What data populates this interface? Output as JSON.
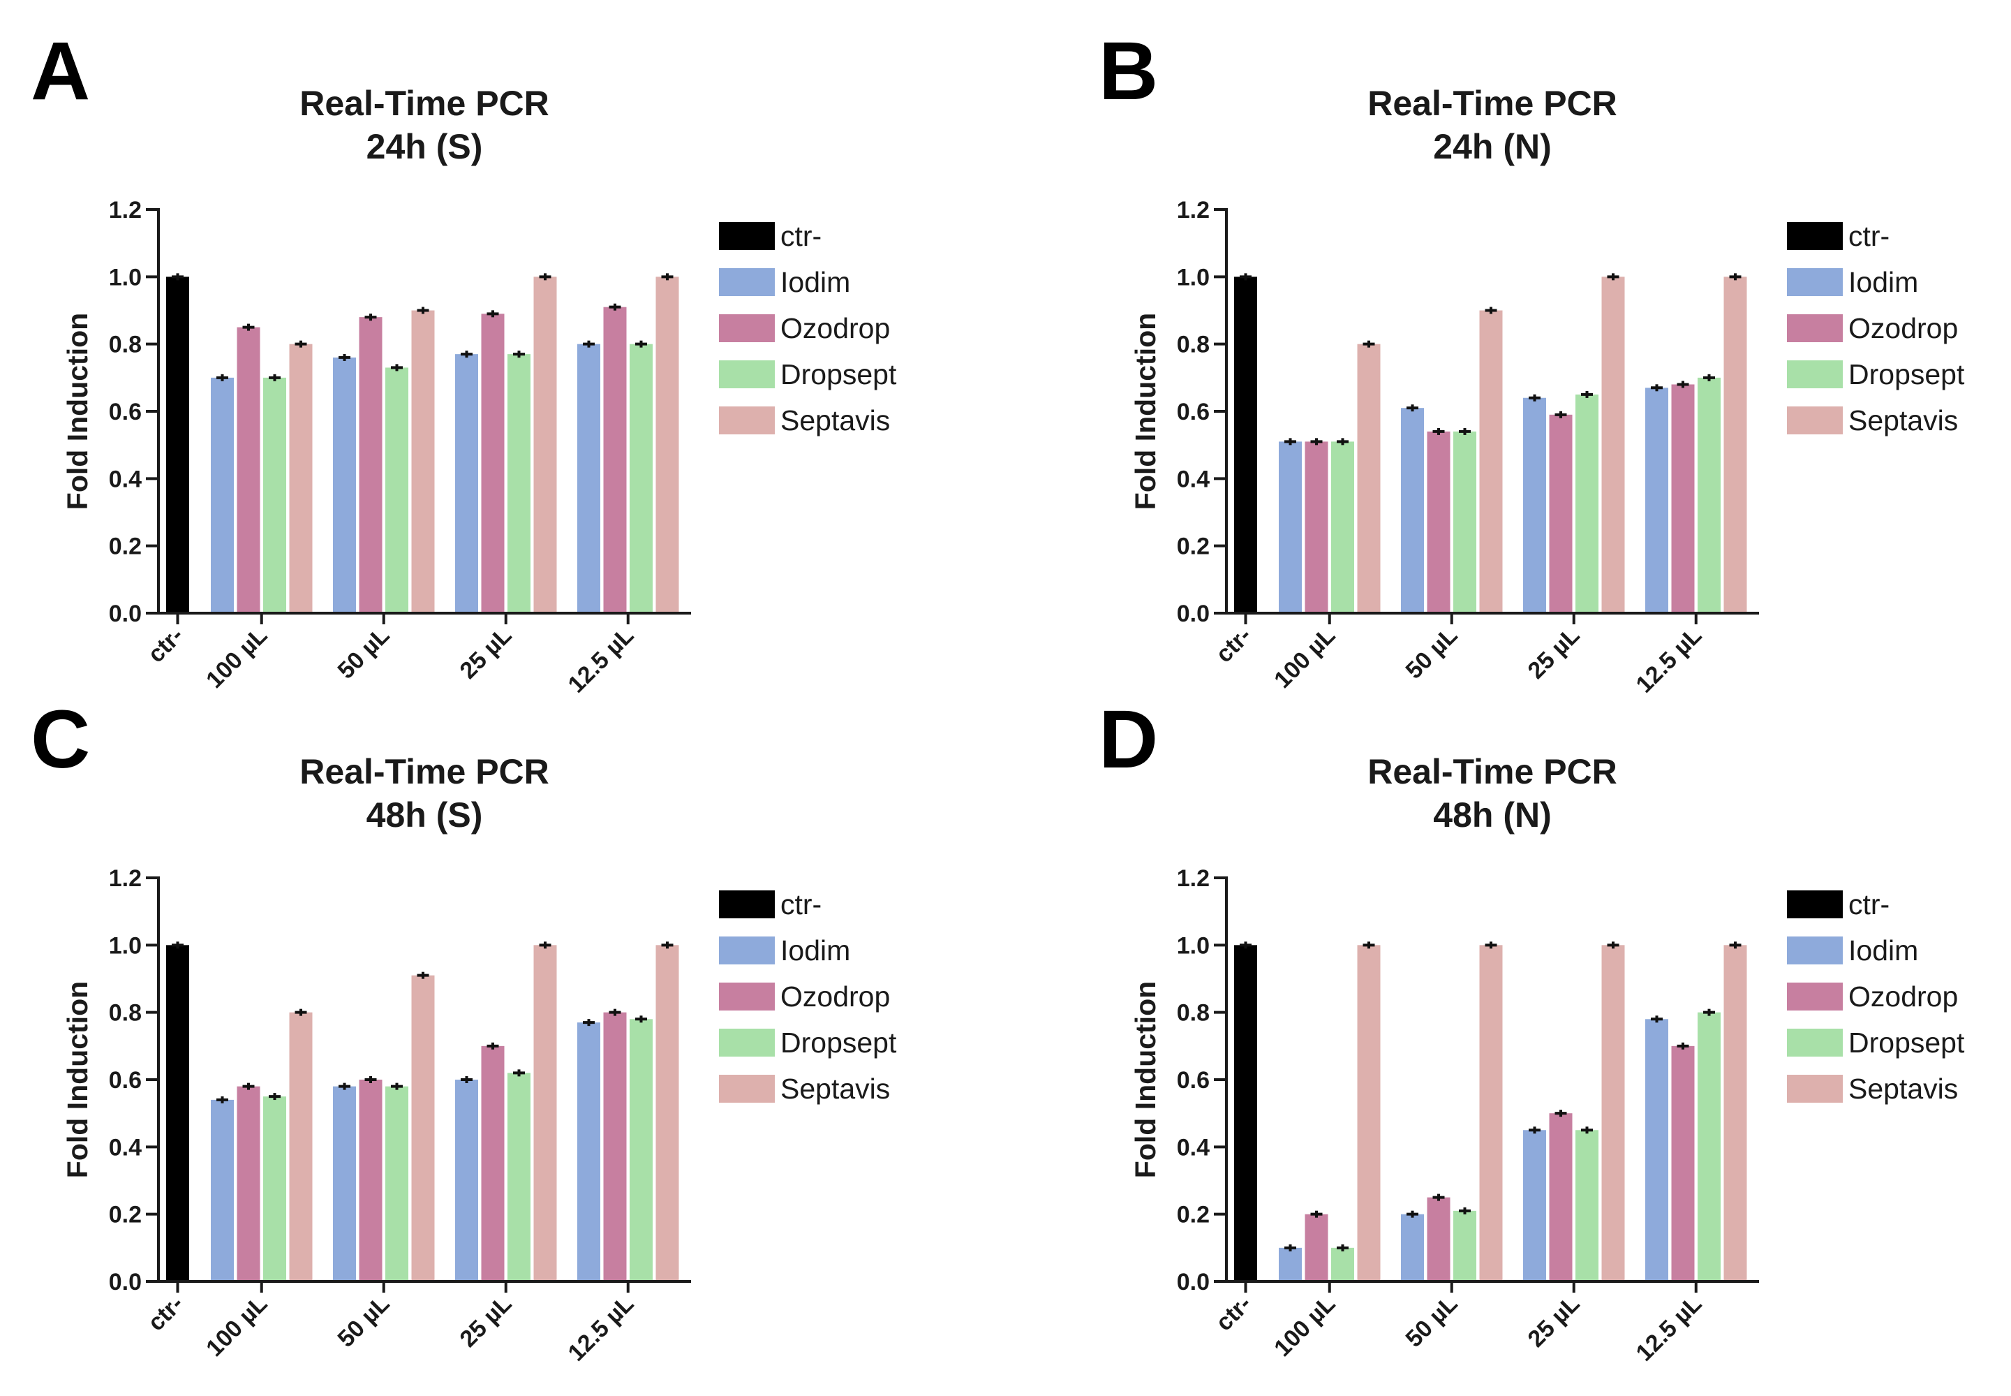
{
  "colors": {
    "ctr-": "#000000",
    "Iodim": "#8eaadb",
    "Ozodrop": "#c77fa0",
    "Dropsept": "#a8e0a8",
    "Septavis": "#ddb0ad"
  },
  "chart_data": [
    {
      "panel": "A",
      "type": "bar",
      "title": [
        "Real-Time PCR",
        "24h (S)"
      ],
      "xlabel": "",
      "ylabel": "Fold Induction",
      "ylim": [
        0,
        1.2
      ],
      "yticks": [
        "0.0",
        "0.2",
        "0.4",
        "0.6",
        "0.8",
        "1.0",
        "1.2"
      ],
      "legend": [
        "ctr-",
        "Iodim",
        "Ozodrop",
        "Dropsept",
        "Septavis"
      ],
      "control": {
        "label": "ctr-",
        "value": 1.0
      },
      "categories": [
        "100 µL",
        "50 µL",
        "25 µL",
        "12.5 µL"
      ],
      "series": [
        {
          "name": "Iodim",
          "values": [
            0.7,
            0.76,
            0.77,
            0.8
          ]
        },
        {
          "name": "Ozodrop",
          "values": [
            0.85,
            0.88,
            0.89,
            0.91
          ]
        },
        {
          "name": "Dropsept",
          "values": [
            0.7,
            0.73,
            0.77,
            0.8
          ]
        },
        {
          "name": "Septavis",
          "values": [
            0.8,
            0.9,
            1.0,
            1.0
          ]
        }
      ]
    },
    {
      "panel": "B",
      "type": "bar",
      "title": [
        "Real-Time PCR",
        "24h (N)"
      ],
      "xlabel": "",
      "ylabel": "Fold Induction",
      "ylim": [
        0,
        1.2
      ],
      "yticks": [
        "0.0",
        "0.2",
        "0.4",
        "0.6",
        "0.8",
        "1.0",
        "1.2"
      ],
      "legend": [
        "ctr-",
        "Iodim",
        "Ozodrop",
        "Dropsept",
        "Septavis"
      ],
      "control": {
        "label": "ctr-",
        "value": 1.0
      },
      "categories": [
        "100 µL",
        "50 µL",
        "25 µL",
        "12.5 µL"
      ],
      "series": [
        {
          "name": "Iodim",
          "values": [
            0.51,
            0.61,
            0.64,
            0.67
          ]
        },
        {
          "name": "Ozodrop",
          "values": [
            0.51,
            0.54,
            0.59,
            0.68
          ]
        },
        {
          "name": "Dropsept",
          "values": [
            0.51,
            0.54,
            0.65,
            0.7
          ]
        },
        {
          "name": "Septavis",
          "values": [
            0.8,
            0.9,
            1.0,
            1.0
          ]
        }
      ]
    },
    {
      "panel": "C",
      "type": "bar",
      "title": [
        "Real-Time PCR",
        "48h (S)"
      ],
      "xlabel": "",
      "ylabel": "Fold Induction",
      "ylim": [
        0,
        1.2
      ],
      "yticks": [
        "0.0",
        "0.2",
        "0.4",
        "0.6",
        "0.8",
        "1.0",
        "1.2"
      ],
      "legend": [
        "ctr-",
        "Iodim",
        "Ozodrop",
        "Dropsept",
        "Septavis"
      ],
      "control": {
        "label": "ctr-",
        "value": 1.0
      },
      "categories": [
        "100 µL",
        "50 µL",
        "25 µL",
        "12.5 µL"
      ],
      "series": [
        {
          "name": "Iodim",
          "values": [
            0.54,
            0.58,
            0.6,
            0.77
          ]
        },
        {
          "name": "Ozodrop",
          "values": [
            0.58,
            0.6,
            0.7,
            0.8
          ]
        },
        {
          "name": "Dropsept",
          "values": [
            0.55,
            0.58,
            0.62,
            0.78
          ]
        },
        {
          "name": "Septavis",
          "values": [
            0.8,
            0.91,
            1.0,
            1.0
          ]
        }
      ]
    },
    {
      "panel": "D",
      "type": "bar",
      "title": [
        "Real-Time PCR",
        "48h (N)"
      ],
      "xlabel": "",
      "ylabel": "Fold Induction",
      "ylim": [
        0,
        1.2
      ],
      "yticks": [
        "0.0",
        "0.2",
        "0.4",
        "0.6",
        "0.8",
        "1.0",
        "1.2"
      ],
      "legend": [
        "ctr-",
        "Iodim",
        "Ozodrop",
        "Dropsept",
        "Septavis"
      ],
      "control": {
        "label": "ctr-",
        "value": 1.0
      },
      "categories": [
        "100 µL",
        "50 µL",
        "25 µL",
        "12.5 µL"
      ],
      "series": [
        {
          "name": "Iodim",
          "values": [
            0.1,
            0.2,
            0.45,
            0.78
          ]
        },
        {
          "name": "Ozodrop",
          "values": [
            0.2,
            0.25,
            0.5,
            0.7
          ]
        },
        {
          "name": "Dropsept",
          "values": [
            0.1,
            0.21,
            0.45,
            0.8
          ]
        },
        {
          "name": "Septavis",
          "values": [
            1.0,
            1.0,
            1.0,
            1.0
          ]
        }
      ]
    }
  ]
}
